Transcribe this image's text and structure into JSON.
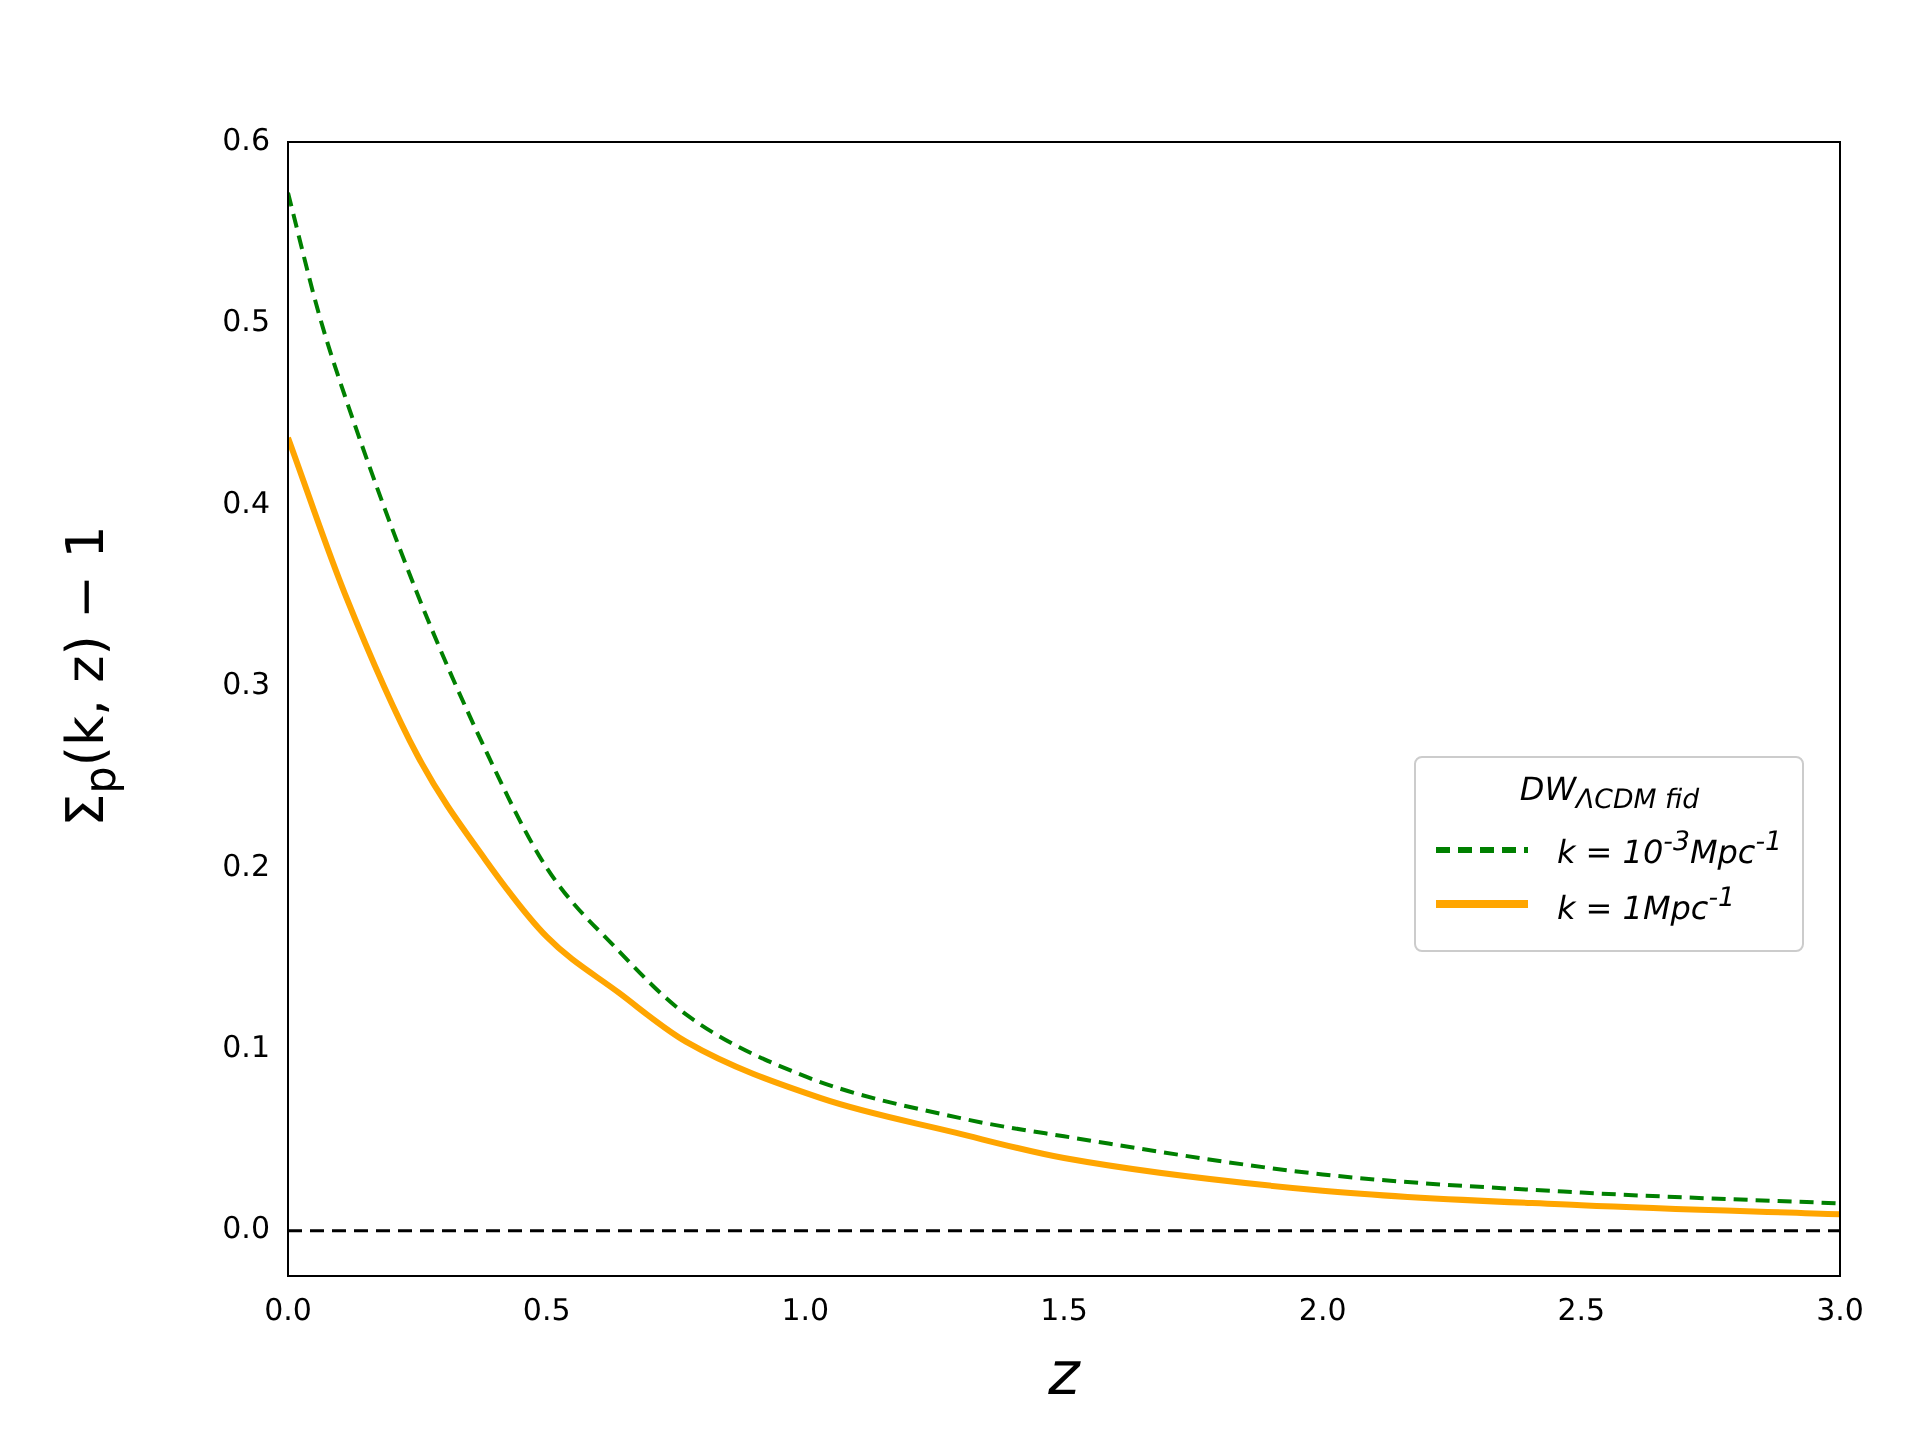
{
  "chart_data": {
    "type": "line",
    "xlabel": "z",
    "ylabel": "Σ$_{p}$(k, z) − 1",
    "legend_title": "DW$_{ΛCDM fid}$",
    "xlim": [
      0,
      3
    ],
    "ylim": [
      -0.025,
      0.6
    ],
    "xticks": [
      {
        "value": 0,
        "label": "0.0"
      },
      {
        "value": 0.5,
        "label": "0.5"
      },
      {
        "value": 1,
        "label": "1.0"
      },
      {
        "value": 1.5,
        "label": "1.5"
      },
      {
        "value": 2,
        "label": "2.0"
      },
      {
        "value": 2.5,
        "label": "2.5"
      },
      {
        "value": 3,
        "label": "3.0"
      }
    ],
    "yticks": [
      {
        "value": 0,
        "label": "0.0"
      },
      {
        "value": 0.1,
        "label": "0.1"
      },
      {
        "value": 0.2,
        "label": "0.2"
      },
      {
        "value": 0.3,
        "label": "0.3"
      },
      {
        "value": 0.4,
        "label": "0.4"
      },
      {
        "value": 0.5,
        "label": "0.5"
      },
      {
        "value": 0.6,
        "label": "0.6"
      }
    ],
    "grid": false,
    "legend": "right",
    "marker": "none",
    "series": [
      {
        "name": "k = 10$^{-3}$Mpc$^{-1}$",
        "color": "#008000",
        "line_style": "dashed",
        "x": [
          0,
          0.06,
          0.11,
          0.25,
          0.38,
          0.5,
          0.64,
          0.77,
          1.0,
          1.3,
          1.5,
          2.0,
          2.5,
          3.0
        ],
        "values": [
          0.572,
          0.505,
          0.46,
          0.351,
          0.266,
          0.2,
          0.154,
          0.119,
          0.085,
          0.062,
          0.052,
          0.031,
          0.021,
          0.015
        ]
      },
      {
        "name": "k = 1Mpc$^{-1}$",
        "color": "#ffa500",
        "line_style": "solid",
        "x": [
          0,
          0.11,
          0.25,
          0.38,
          0.5,
          0.64,
          0.77,
          1.03,
          1.29,
          1.5,
          2.0,
          2.5,
          3.0
        ],
        "values": [
          0.437,
          0.351,
          0.262,
          0.205,
          0.162,
          0.131,
          0.104,
          0.073,
          0.054,
          0.04,
          0.022,
          0.014,
          0.009
        ]
      }
    ],
    "ref_lines": [
      {
        "axis": "y",
        "value": 0,
        "color": "#000000",
        "line_style": "dashed"
      }
    ]
  }
}
